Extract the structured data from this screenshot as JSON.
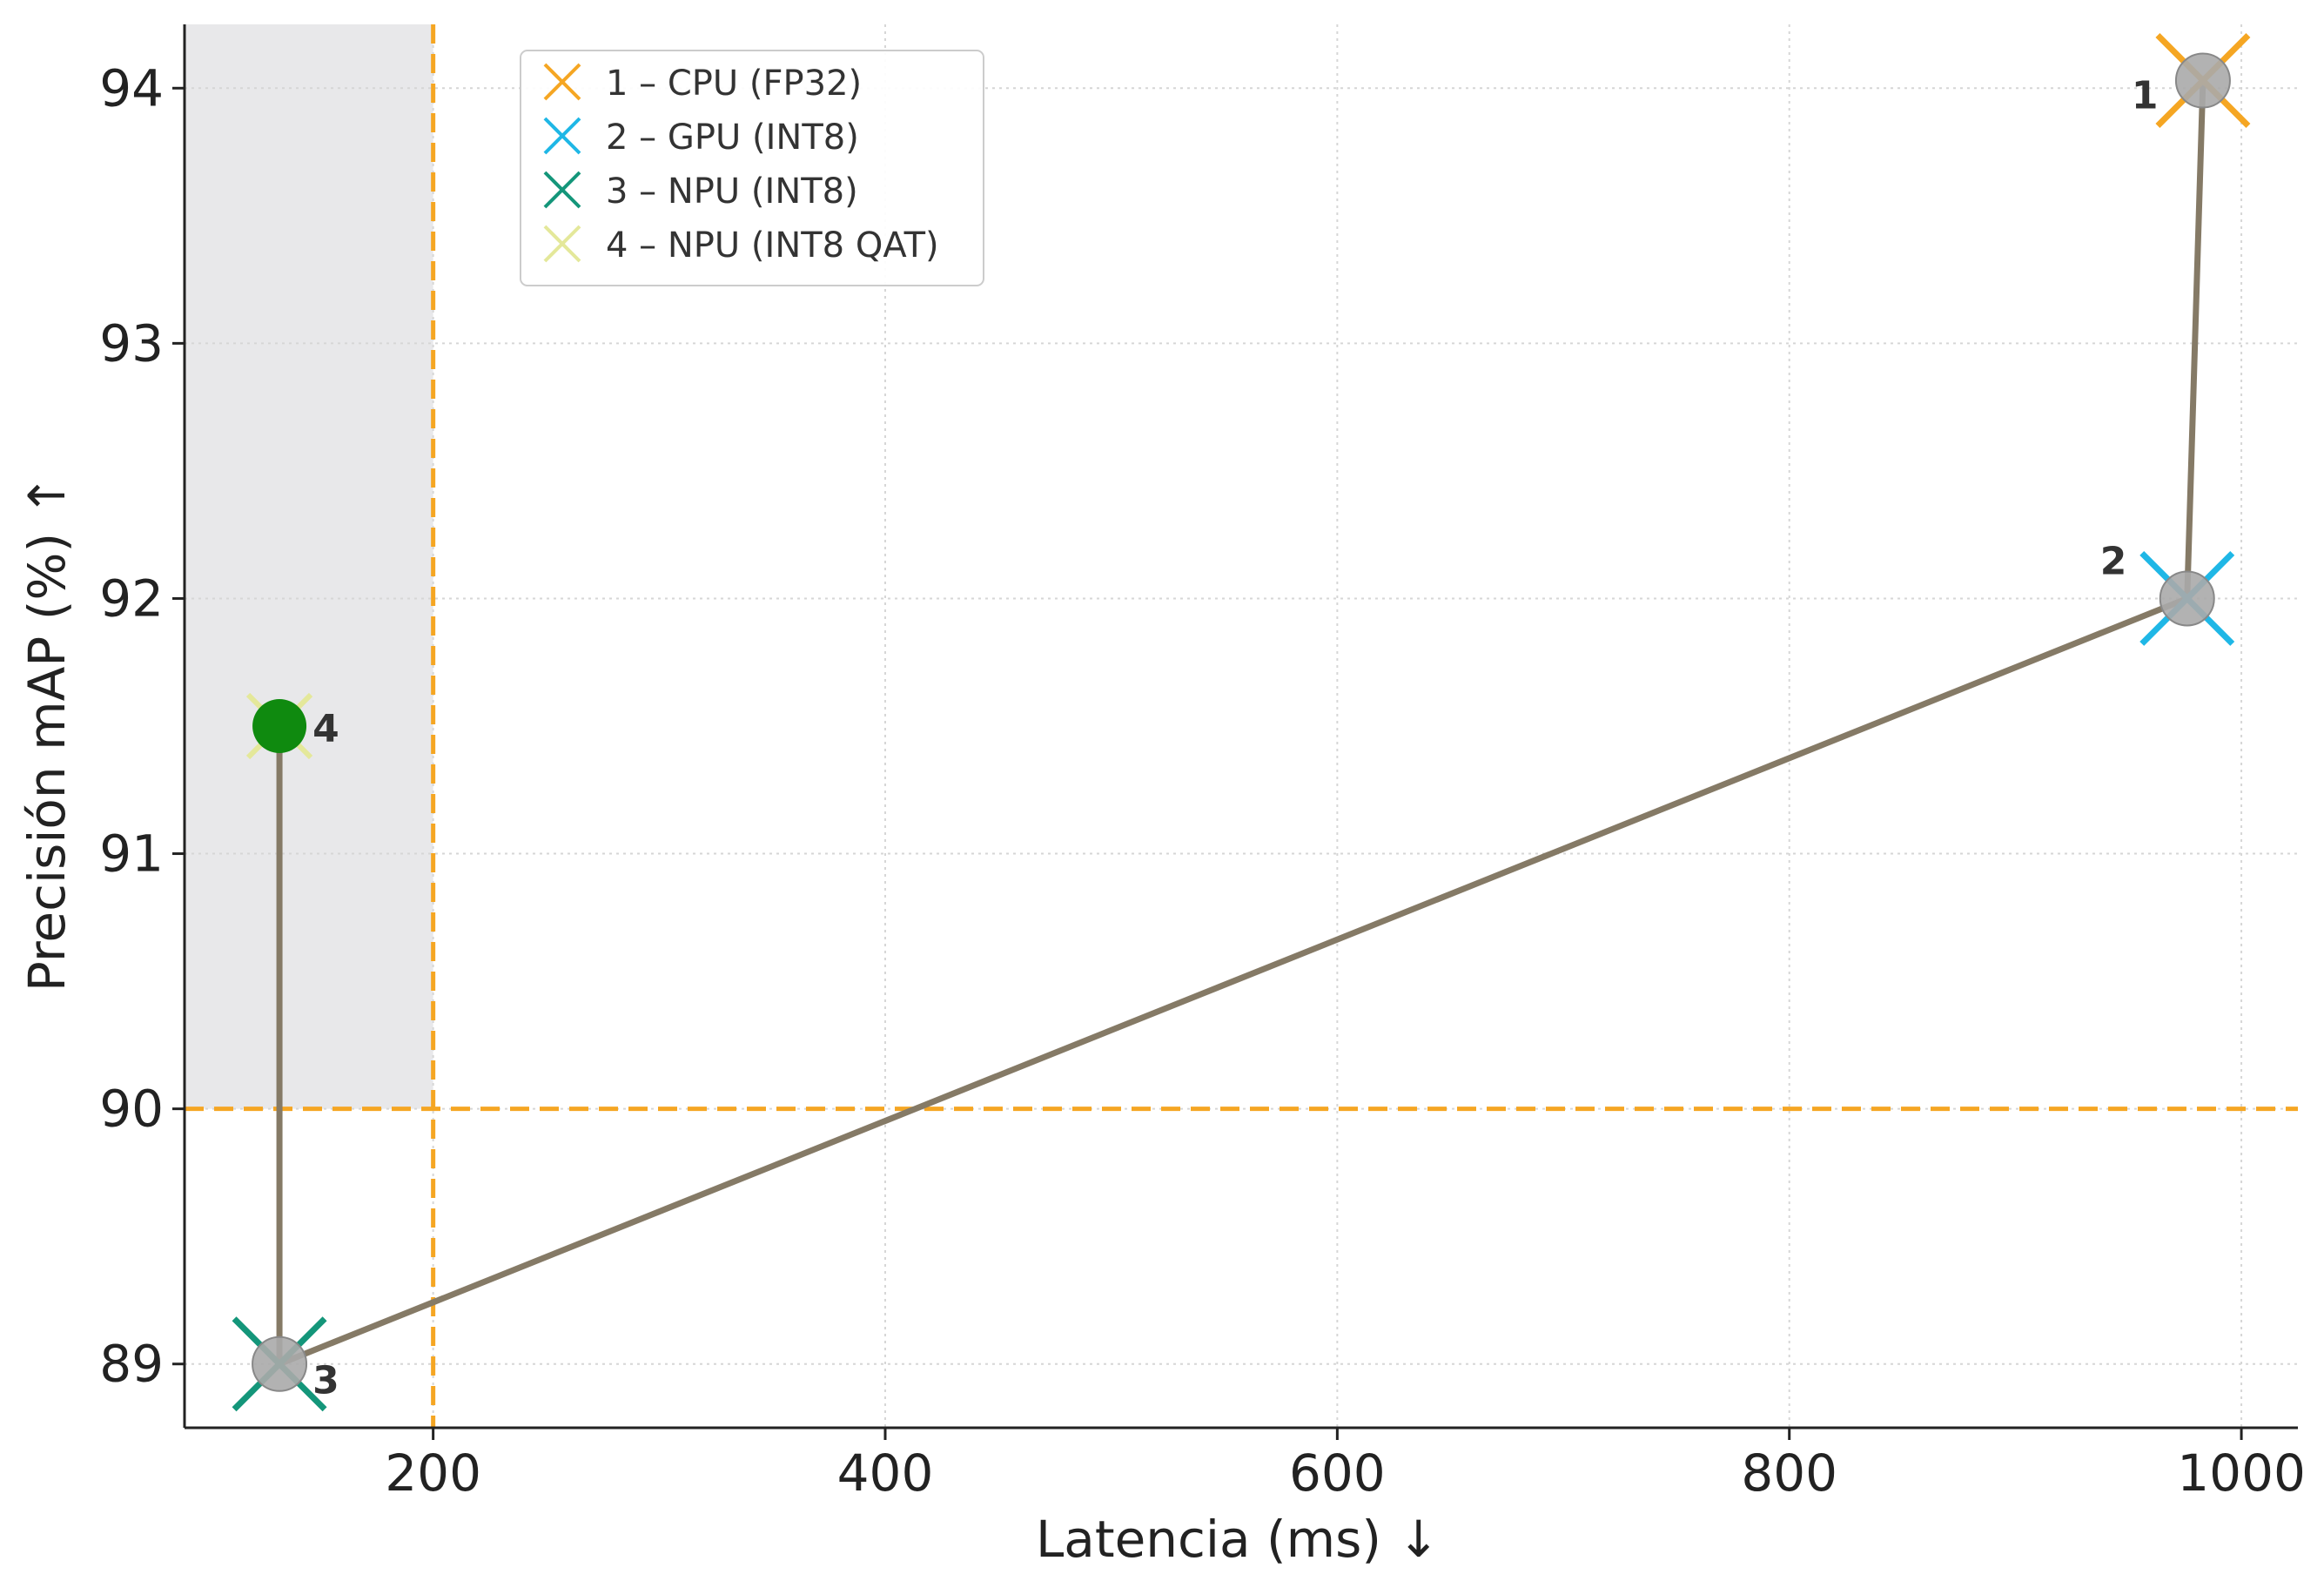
{
  "chart_data": {
    "type": "scatter",
    "title": "",
    "xlabel": "Latencia (ms) ↓",
    "ylabel": "Precisión mAP (%) ↑",
    "xlim": [
      90,
      1025
    ],
    "ylim": [
      88.75,
      94.25
    ],
    "xticks": [
      200,
      400,
      600,
      800,
      1000
    ],
    "yticks": [
      89,
      90,
      91,
      92,
      93,
      94
    ],
    "grid": true,
    "thresholds": {
      "latency_ms": 200,
      "accuracy_pct": 90
    },
    "feasible_region": {
      "x_max": 200,
      "y_min": 90
    },
    "series": [
      {
        "id": "1",
        "name": "1 – CPU (FP32)",
        "latency": 983,
        "accuracy": 94.03,
        "color": "#f5a623"
      },
      {
        "id": "2",
        "name": "2 – GPU (INT8)",
        "latency": 976,
        "accuracy": 92.0,
        "color": "#1fb7e6"
      },
      {
        "id": "3",
        "name": "3 – NPU (INT8)",
        "latency": 132,
        "accuracy": 89.0,
        "color": "#14967a"
      },
      {
        "id": "4",
        "name": "4 – NPU (INT8 QAT)",
        "latency": 132,
        "accuracy": 91.5,
        "color": "#e4e89a"
      }
    ],
    "path_order": [
      "1",
      "2",
      "3",
      "4"
    ],
    "legend_position": "top-left",
    "colors": {
      "threshold": "#f5a623",
      "region": "#e8e8ea",
      "connector": "#857a66",
      "marker_fill": "#aaaaaa",
      "qat_marker_fill": "#0f8a0f"
    }
  }
}
